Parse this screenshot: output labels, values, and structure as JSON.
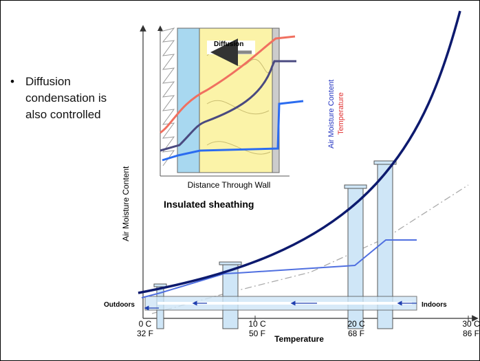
{
  "bullet": "Diffusion condensation is also controlled",
  "inset": {
    "arrow_label": "Diffusion",
    "legend_moisture": "Air Moisture Content",
    "legend_temperature": "Temperature",
    "x_axis_label": "Distance Through Wall",
    "caption": "Insulated sheathing"
  },
  "main": {
    "y_axis_label": "Air Moisture Content",
    "x_axis_label": "Temperature",
    "outdoors": "Outdoors",
    "indoors": "Indoors",
    "x_ticks": [
      {
        "celsius": "0 C",
        "fahrenheit": "32 F"
      },
      {
        "celsius": "10 C",
        "fahrenheit": "50 F"
      },
      {
        "celsius": "20 C",
        "fahrenheit": "68 F"
      },
      {
        "celsius": "30 C",
        "fahrenheit": "86 F"
      }
    ]
  }
}
